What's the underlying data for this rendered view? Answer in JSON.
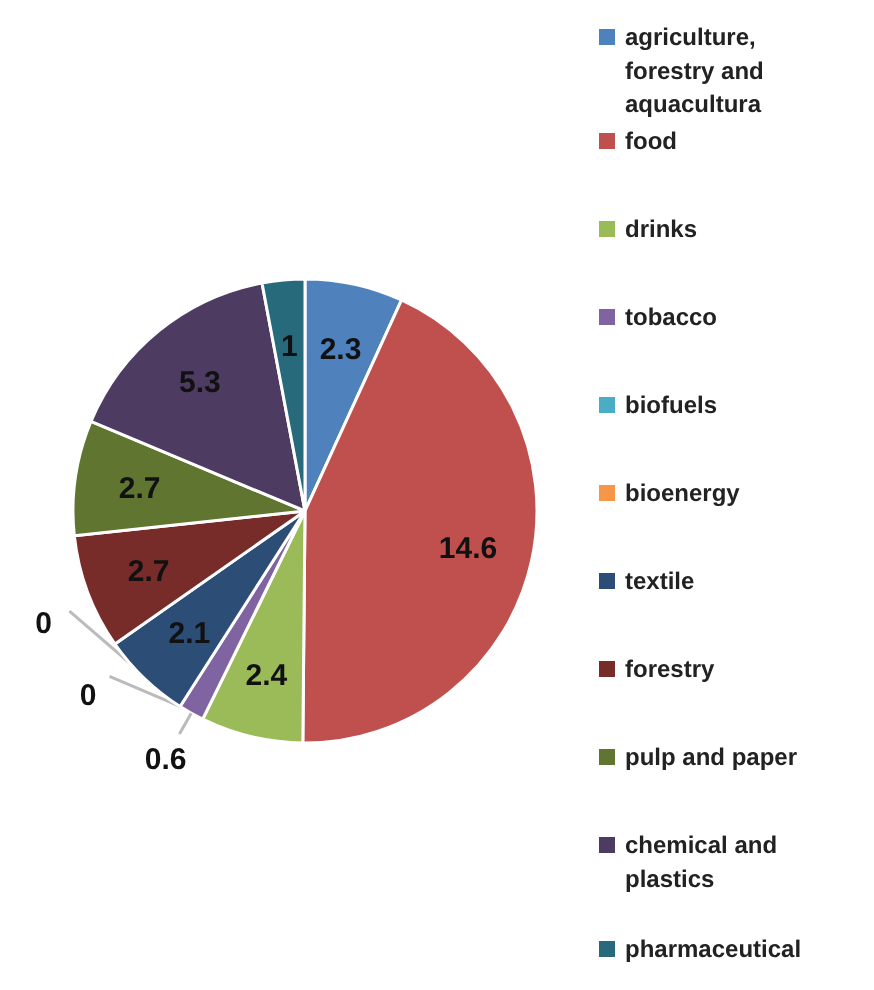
{
  "chart_data": {
    "type": "pie",
    "categories": [
      "agriculture, forestry and aquacultura",
      "food",
      "drinks",
      "tobacco",
      "biofuels",
      "bioenergy",
      "textile",
      "forestry",
      "pulp and paper",
      "chemical and plastics",
      "pharmaceutical"
    ],
    "values": [
      2.3,
      14.6,
      2.4,
      0.6,
      0,
      0,
      2.1,
      2.7,
      2.7,
      5.3,
      1
    ],
    "colors": [
      "#4f81bd",
      "#c0504d",
      "#9bbb59",
      "#8064a2",
      "#4bacc6",
      "#f79646",
      "#2c4d75",
      "#772c2a",
      "#5f7530",
      "#4d3b62",
      "#276a7c"
    ],
    "value_labels": [
      "2.3",
      "14.6",
      "2.4",
      "0.6",
      "0",
      "0",
      "2.1",
      "2.7",
      "2.7",
      "5.3",
      "1"
    ],
    "legend": "right"
  }
}
